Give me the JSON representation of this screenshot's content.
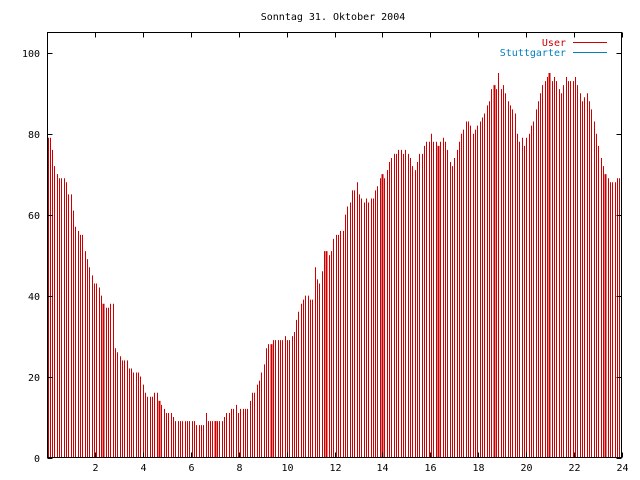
{
  "chart_data": {
    "type": "bar",
    "title": "Sonntag 31. Oktober 2004",
    "xlabel": "",
    "ylabel": "",
    "xlim": [
      0,
      24
    ],
    "ylim": [
      0,
      105
    ],
    "x_ticks": [
      2,
      4,
      6,
      8,
      10,
      12,
      14,
      16,
      18,
      20,
      22,
      24
    ],
    "y_ticks": [
      0,
      20,
      40,
      60,
      80,
      100
    ],
    "grid": false,
    "legend_position": "top-right",
    "colors": {
      "User": "#cc0000",
      "Stuttgarter": "#0080c0",
      "axis": "#000000"
    },
    "sample_interval_hours": 0.0833,
    "series": [
      {
        "name": "User",
        "color": "#cc0000",
        "values": [
          79,
          79,
          76,
          72,
          70,
          69,
          69,
          69,
          68,
          65,
          65,
          61,
          57,
          56,
          55,
          55,
          51,
          49,
          47,
          45,
          43,
          43,
          42,
          40,
          38,
          37,
          37,
          38,
          38,
          27,
          26,
          25,
          24,
          24,
          24,
          22,
          22,
          21,
          21,
          21,
          20,
          18,
          16,
          15,
          15,
          15,
          16,
          16,
          14,
          13,
          12,
          11,
          11,
          11,
          10,
          9,
          9,
          9,
          9,
          9,
          9,
          9,
          9,
          9,
          8,
          8,
          8,
          8,
          11,
          9,
          9,
          9,
          9,
          9,
          9,
          9,
          10,
          11,
          11,
          12,
          12,
          13,
          11,
          12,
          12,
          12,
          12,
          14,
          16,
          16,
          18,
          19,
          21,
          23,
          27,
          28,
          28,
          29,
          29,
          29,
          29,
          29,
          30,
          29,
          29,
          30,
          31,
          34,
          36,
          38,
          39,
          40,
          40,
          39,
          39,
          47,
          44,
          43,
          46,
          51,
          51,
          50,
          51,
          54,
          55,
          55,
          56,
          56,
          60,
          62,
          63,
          66,
          66,
          68,
          65,
          64,
          63,
          64,
          63,
          64,
          64,
          66,
          67,
          69,
          70,
          69,
          71,
          73,
          74,
          75,
          75,
          76,
          76,
          75,
          76,
          75,
          74,
          72,
          71,
          73,
          75,
          75,
          77,
          78,
          78,
          80,
          78,
          78,
          77,
          78,
          79,
          78,
          76,
          73,
          72,
          74,
          76,
          78,
          80,
          81,
          83,
          83,
          82,
          80,
          81,
          82,
          83,
          84,
          85,
          87,
          88,
          91,
          92,
          91,
          95,
          91,
          92,
          90,
          88,
          87,
          86,
          85,
          80,
          78,
          79,
          77,
          79,
          80,
          82,
          83,
          86,
          88,
          90,
          92,
          93,
          94,
          95,
          93,
          94,
          93,
          91,
          90,
          92,
          94,
          93,
          93,
          93,
          94,
          92,
          90,
          88,
          89,
          90,
          88,
          86,
          83,
          80,
          77,
          74,
          72,
          70,
          69,
          68,
          68,
          68,
          69,
          69
        ]
      },
      {
        "name": "Stuttgarter",
        "color": "#0080c0",
        "values": []
      }
    ]
  }
}
